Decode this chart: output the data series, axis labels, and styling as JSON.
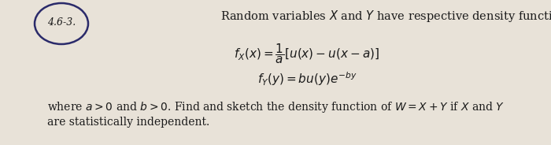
{
  "problem_number": "4.6-3.",
  "intro_text": "Random variables $X$ and $Y$ have respective density functions",
  "eq1": "$f_X(x) = \\dfrac{1}{a}[u(x) - u(x-a)]$",
  "eq2": "$f_Y(y) = bu(y)e^{-by}$",
  "body_line1": "where $a > 0$ and $b > 0$. Find and sketch the density function of $W = X + Y$ if $X$ and $Y$",
  "body_line2": "are statistically independent.",
  "bg_color": "#e8e2d8",
  "text_color": "#1a1a1a",
  "circle_color": "#2a2a6a",
  "fig_width": 7.0,
  "fig_height": 1.84,
  "dpi": 100
}
